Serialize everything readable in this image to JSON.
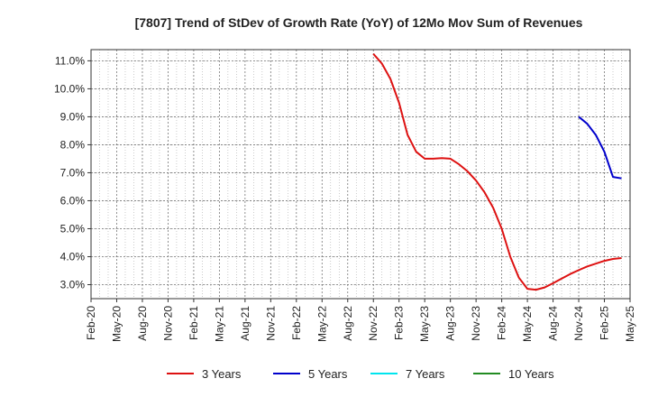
{
  "chart_data": {
    "type": "line",
    "title": "[7807]  Trend of StDev of Growth Rate (YoY) of 12Mo Mov Sum of Revenues",
    "xlabel": "",
    "ylabel": "",
    "x_tick_labels": [
      "Feb-20",
      "May-20",
      "Aug-20",
      "Nov-20",
      "Feb-21",
      "May-21",
      "Aug-21",
      "Nov-21",
      "Feb-22",
      "May-22",
      "Aug-22",
      "Nov-22",
      "Feb-23",
      "May-23",
      "Aug-23",
      "Nov-23",
      "Feb-24",
      "May-24",
      "Aug-24",
      "Nov-24",
      "Feb-25",
      "May-25"
    ],
    "y_tick_values": [
      3.0,
      4.0,
      5.0,
      6.0,
      7.0,
      8.0,
      9.0,
      10.0,
      11.0
    ],
    "y_tick_labels": [
      "3.0%",
      "4.0%",
      "5.0%",
      "6.0%",
      "7.0%",
      "8.0%",
      "9.0%",
      "10.0%",
      "11.0%"
    ],
    "ylim": [
      2.5,
      11.4
    ],
    "x_range_months": [
      0,
      63
    ],
    "grid": true,
    "legend_position": "bottom",
    "series": [
      {
        "name": "3 Years",
        "color": "#dd1111",
        "x": [
          33,
          34,
          35,
          36,
          37,
          38,
          39,
          40,
          41,
          42,
          43,
          44,
          45,
          46,
          47,
          48,
          49,
          50,
          51,
          52,
          53,
          54,
          55,
          56,
          57,
          58,
          59,
          60,
          61,
          62
        ],
        "values": [
          11.25,
          10.9,
          10.35,
          9.5,
          8.35,
          7.75,
          7.5,
          7.5,
          7.52,
          7.5,
          7.3,
          7.05,
          6.72,
          6.3,
          5.75,
          5.0,
          4.0,
          3.25,
          2.85,
          2.82,
          2.9,
          3.05,
          3.22,
          3.38,
          3.52,
          3.65,
          3.75,
          3.85,
          3.92,
          3.95
        ]
      },
      {
        "name": "5 Years",
        "color": "#0000cc",
        "x": [
          57,
          58,
          59,
          60,
          61,
          62
        ],
        "values": [
          9.0,
          8.75,
          8.35,
          7.75,
          6.85,
          6.8
        ]
      },
      {
        "name": "7 Years",
        "color": "#00e5ee",
        "x": [],
        "values": []
      },
      {
        "name": "10 Years",
        "color": "#228b22",
        "x": [],
        "values": []
      }
    ]
  }
}
